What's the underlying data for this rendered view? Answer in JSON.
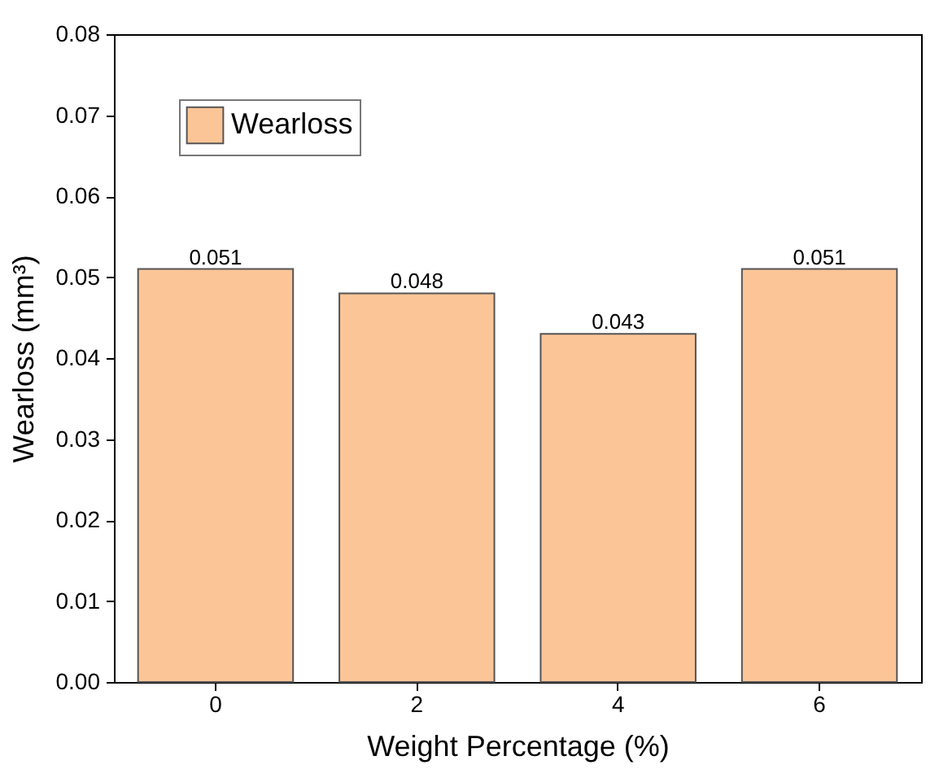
{
  "chart_data": {
    "type": "bar",
    "xlabel": "Weight Percentage (%)",
    "ylabel": "Wearloss (mm³)",
    "categories": [
      "0",
      "2",
      "4",
      "6"
    ],
    "series": [
      {
        "name": "Wearloss",
        "color": "#fcc597",
        "values": [
          0.051,
          0.048,
          0.043,
          0.051
        ]
      }
    ],
    "ylim": [
      0,
      0.08
    ],
    "yticks": [
      {
        "value": 0,
        "label": "0.00"
      },
      {
        "value": 0.01,
        "label": "0.01"
      },
      {
        "value": 0.02,
        "label": "0.02"
      },
      {
        "value": 0.03,
        "label": "0.03"
      },
      {
        "value": 0.04,
        "label": "0.04"
      },
      {
        "value": 0.05,
        "label": "0.05"
      },
      {
        "value": 0.06,
        "label": "0.06"
      },
      {
        "value": 0.07,
        "label": "0.07"
      },
      {
        "value": 0.08,
        "label": "0.08"
      }
    ],
    "data_labels": true,
    "legend": "top left",
    "grid": false
  }
}
